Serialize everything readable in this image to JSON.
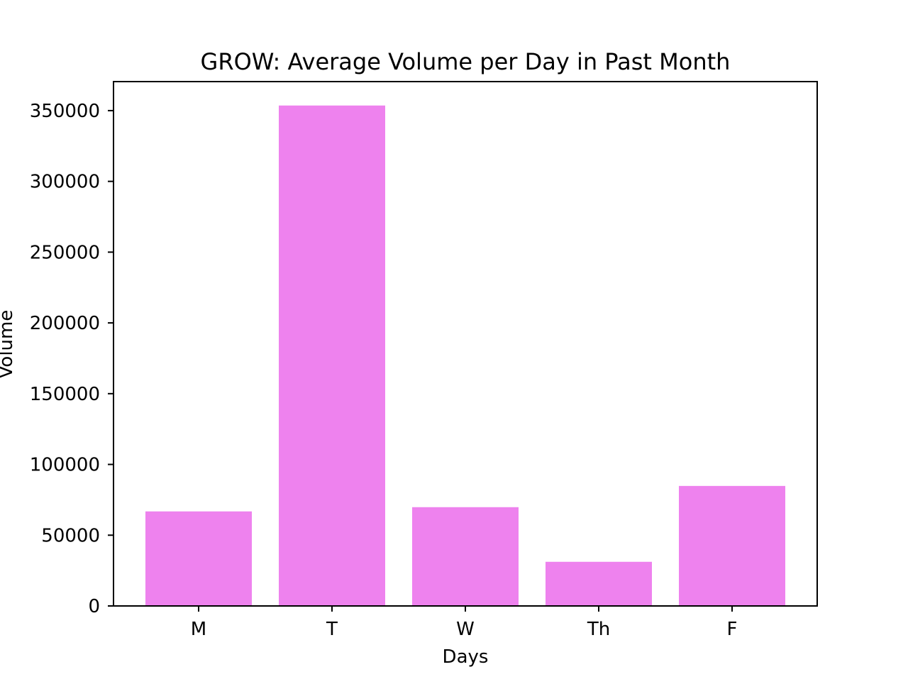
{
  "chart_data": {
    "type": "bar",
    "title": "GROW: Average Volume per Day in Past Month",
    "xlabel": "Days",
    "ylabel": "Volume",
    "categories": [
      "M",
      "T",
      "W",
      "Th",
      "F"
    ],
    "values": [
      66800,
      353600,
      69800,
      31200,
      84800
    ],
    "ylim": [
      0,
      370500
    ],
    "yticks": [
      0,
      50000,
      100000,
      150000,
      200000,
      250000,
      300000,
      350000
    ],
    "ytick_labels": [
      "0",
      "50000",
      "100000",
      "150000",
      "200000",
      "250000",
      "300000",
      "350000"
    ],
    "bar_color": "#ee82ee",
    "grid": false,
    "legend": "none"
  }
}
